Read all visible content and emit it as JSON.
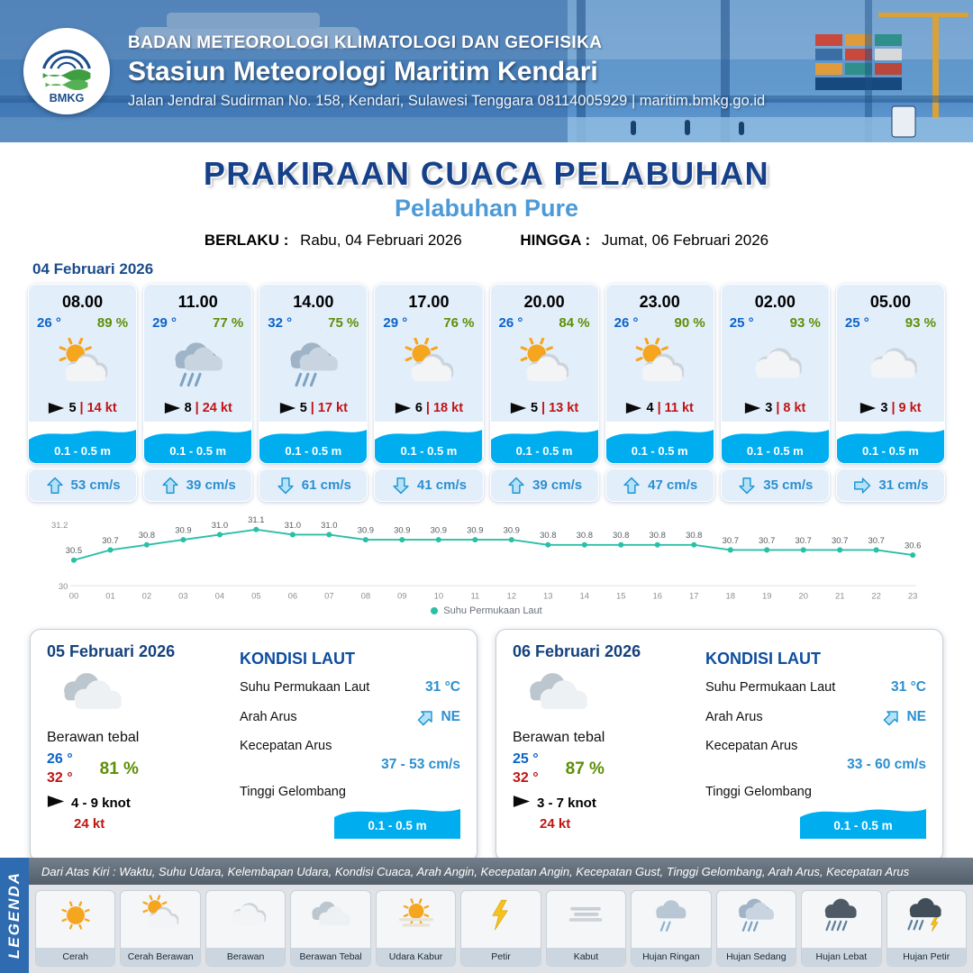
{
  "header": {
    "org_line": "BADAN METEOROLOGI KLIMATOLOGI DAN GEOFISIKA",
    "station_line": "Stasiun Meteorologi Maritim Kendari",
    "address_line": "Jalan Jendral Sudirman No. 158, Kendari, Sulawesi Tenggara  08114005929 | maritim.bmkg.go.id",
    "logo_text": "BMKG"
  },
  "title": "PRAKIRAAN CUACA PELABUHAN",
  "subtitle": "Pelabuhan Pure",
  "validity": {
    "berlaku_label": "BERLAKU :",
    "berlaku_value": "Rabu, 04 Februari 2026",
    "hingga_label": "HINGGA :",
    "hingga_value": "Jumat, 06 Februari 2026"
  },
  "forecast_date": "04 Februari 2026",
  "colors": {
    "accent_blue": "#2e6bb0",
    "wave_blue": "#00aeef",
    "temp_blue": "#0a64c8",
    "humidity_green": "#5d8f06",
    "gust_red": "#c01414",
    "chart_teal": "#2bbfa6"
  },
  "hourly": [
    {
      "time": "08.00",
      "temp": "26 °",
      "humidity": "89 %",
      "icon": "cerah-berawan",
      "wind_speed": "5",
      "wind_gust": "14 kt",
      "wave": "0.1 - 0.5 m",
      "current_dir": "up",
      "current_speed": "53 cm/s"
    },
    {
      "time": "11.00",
      "temp": "29 °",
      "humidity": "77 %",
      "icon": "hujan-sedang",
      "wind_speed": "8",
      "wind_gust": "24 kt",
      "wave": "0.1 - 0.5 m",
      "current_dir": "up",
      "current_speed": "39 cm/s"
    },
    {
      "time": "14.00",
      "temp": "32 °",
      "humidity": "75 %",
      "icon": "hujan-sedang",
      "wind_speed": "5",
      "wind_gust": "17 kt",
      "wave": "0.1 - 0.5 m",
      "current_dir": "down",
      "current_speed": "61 cm/s"
    },
    {
      "time": "17.00",
      "temp": "29 °",
      "humidity": "76 %",
      "icon": "cerah-berawan",
      "wind_speed": "6",
      "wind_gust": "18 kt",
      "wave": "0.1 - 0.5 m",
      "current_dir": "down",
      "current_speed": "41 cm/s"
    },
    {
      "time": "20.00",
      "temp": "26 °",
      "humidity": "84 %",
      "icon": "cerah-berawan",
      "wind_speed": "5",
      "wind_gust": "13 kt",
      "wave": "0.1 - 0.5 m",
      "current_dir": "up",
      "current_speed": "39 cm/s"
    },
    {
      "time": "23.00",
      "temp": "26 °",
      "humidity": "90 %",
      "icon": "cerah-berawan",
      "wind_speed": "4",
      "wind_gust": "11 kt",
      "wave": "0.1 - 0.5 m",
      "current_dir": "up",
      "current_speed": "47 cm/s"
    },
    {
      "time": "02.00",
      "temp": "25 °",
      "humidity": "93 %",
      "icon": "berawan",
      "wind_speed": "3",
      "wind_gust": "8 kt",
      "wave": "0.1 - 0.5 m",
      "current_dir": "down",
      "current_speed": "35 cm/s"
    },
    {
      "time": "05.00",
      "temp": "25 °",
      "humidity": "93 %",
      "icon": "berawan",
      "wind_speed": "3",
      "wind_gust": "9 kt",
      "wave": "0.1 - 0.5 m",
      "current_dir": "right",
      "current_speed": "31 cm/s"
    }
  ],
  "chart_data": {
    "type": "line",
    "series_label": "Suhu Permukaan Laut",
    "x": [
      "00",
      "01",
      "02",
      "03",
      "04",
      "05",
      "06",
      "07",
      "08",
      "09",
      "10",
      "11",
      "12",
      "13",
      "14",
      "15",
      "16",
      "17",
      "18",
      "19",
      "20",
      "21",
      "22",
      "23"
    ],
    "values": [
      30.5,
      30.7,
      30.8,
      30.9,
      31.0,
      31.1,
      31.0,
      31.0,
      30.9,
      30.9,
      30.9,
      30.9,
      30.9,
      30.8,
      30.8,
      30.8,
      30.8,
      30.8,
      30.7,
      30.7,
      30.7,
      30.7,
      30.7,
      30.6
    ],
    "ylim": [
      30,
      31.2
    ],
    "grid": false,
    "legend_position": "bottom",
    "line_color": "#2bbfa6"
  },
  "sea_labels": {
    "title": "KONDISI LAUT",
    "sst": "Suhu Permukaan Laut",
    "arah": "Arah Arus",
    "kecepatan": "Kecepatan Arus",
    "gelombang": "Tinggi Gelombang"
  },
  "daily": [
    {
      "date": "05 Februari 2026",
      "icon": "berawan-tebal",
      "condition": "Berawan tebal",
      "temp_min": "26 °",
      "temp_max": "32 °",
      "humidity": "81 %",
      "wind": "4  - 9 knot",
      "gust": "24 kt",
      "sea": {
        "sst": "31 °C",
        "arah": "NE",
        "arah_dir": "ne",
        "kecepatan": "37  - 53 cm/s",
        "gelombang": "0.1 - 0.5 m"
      }
    },
    {
      "date": "06 Februari 2026",
      "icon": "berawan-tebal",
      "condition": "Berawan tebal",
      "temp_min": "25 °",
      "temp_max": "32 °",
      "humidity": "87 %",
      "wind": "3  - 7 knot",
      "gust": "24 kt",
      "sea": {
        "sst": "31 °C",
        "arah": "NE",
        "arah_dir": "ne",
        "kecepatan": "33  - 60 cm/s",
        "gelombang": "0.1 - 0.5 m"
      }
    }
  ],
  "legend": {
    "sidebar_title": "LEGENDA",
    "note": "Dari Atas Kiri : Waktu, Suhu Udara, Kelembapan Udara, Kondisi Cuaca, Arah Angin, Kecepatan Angin, Kecepatan Gust, Tinggi Gelombang, Arah Arus, Kecepatan Arus",
    "items": [
      {
        "label": "Cerah",
        "icon": "cerah"
      },
      {
        "label": "Cerah Berawan",
        "icon": "cerah-berawan"
      },
      {
        "label": "Berawan",
        "icon": "berawan"
      },
      {
        "label": "Berawan Tebal",
        "icon": "berawan-tebal"
      },
      {
        "label": "Udara Kabur",
        "icon": "udara-kabur"
      },
      {
        "label": "Petir",
        "icon": "petir"
      },
      {
        "label": "Kabut",
        "icon": "kabut"
      },
      {
        "label": "Hujan Ringan",
        "icon": "hujan-ringan"
      },
      {
        "label": "Hujan Sedang",
        "icon": "hujan-sedang"
      },
      {
        "label": "Hujan Lebat",
        "icon": "hujan-lebat"
      },
      {
        "label": "Hujan Petir",
        "icon": "hujan-petir"
      }
    ]
  }
}
